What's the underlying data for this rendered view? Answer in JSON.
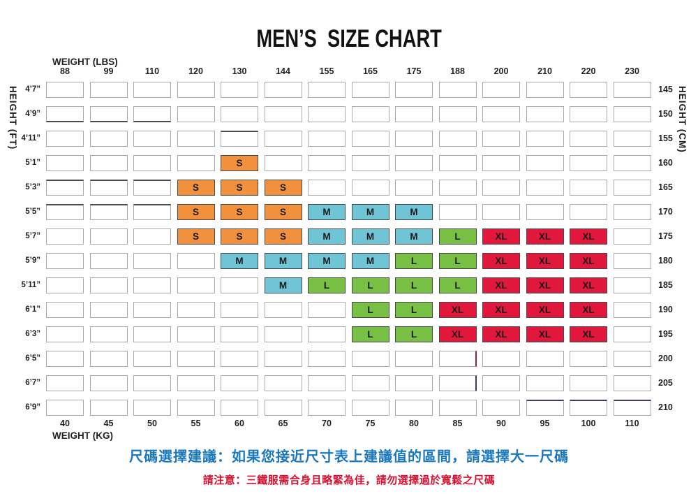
{
  "title": "MEN’S  SIZE CHART",
  "axes": {
    "top": "WEIGHT (LBS)",
    "bottom": "WEIGHT (KG)",
    "left": "HEIGHT (FT)",
    "right": "HEIGHT (CM)"
  },
  "size_colors": {
    "S": "#F1913D",
    "M": "#6FC5D6",
    "L": "#77C043",
    "XL": "#E2173C"
  },
  "notes": {
    "advice": "尺碼選擇建議：如果您接近尺寸表上建議值的區間，請選擇大一尺碼",
    "advice_color": "#1978BE",
    "warning": "請注意：三鐵服需合身且略緊為佳，請勿選擇過於寬鬆之尺碼",
    "warning_color": "#D5102E"
  },
  "chart_data": {
    "type": "heatmap",
    "title": "MEN’S SIZE CHART",
    "x_top_label": "WEIGHT (LBS)",
    "x_top_ticks": [
      88,
      99,
      110,
      120,
      130,
      144,
      155,
      165,
      175,
      188,
      200,
      210,
      220,
      230
    ],
    "x_bottom_label": "WEIGHT (KG)",
    "x_bottom_ticks": [
      40,
      45,
      50,
      55,
      60,
      65,
      70,
      75,
      80,
      85,
      90,
      95,
      100,
      110
    ],
    "y_left_label": "HEIGHT (FT)",
    "y_left_ticks": [
      "4’7”",
      "4’9”",
      "4’11”",
      "5’1”",
      "5’3”",
      "5’5”",
      "5’7”",
      "5’9”",
      "5’11”",
      "6’1”",
      "6’3”",
      "6’5”",
      "6’7”",
      "6’9”"
    ],
    "y_right_label": "HEIGHT (CM)",
    "y_right_ticks": [
      145,
      150,
      155,
      160,
      165,
      170,
      175,
      180,
      185,
      190,
      195,
      200,
      205,
      210
    ],
    "legend": [
      "S",
      "M",
      "L",
      "XL"
    ],
    "cells": [
      [
        "",
        "",
        "",
        "",
        "",
        "",
        "",
        "",
        "",
        "",
        "",
        "",
        "",
        ""
      ],
      [
        "",
        "",
        "",
        "",
        "",
        "",
        "",
        "",
        "",
        "",
        "",
        "",
        "",
        ""
      ],
      [
        "",
        "",
        "",
        "",
        "",
        "",
        "",
        "",
        "",
        "",
        "",
        "",
        "",
        ""
      ],
      [
        "",
        "",
        "",
        "",
        "S",
        "",
        "",
        "",
        "",
        "",
        "",
        "",
        "",
        ""
      ],
      [
        "",
        "",
        "",
        "S",
        "S",
        "S",
        "",
        "",
        "",
        "",
        "",
        "",
        "",
        ""
      ],
      [
        "",
        "",
        "",
        "S",
        "S",
        "S",
        "M",
        "M",
        "M",
        "",
        "",
        "",
        "",
        ""
      ],
      [
        "",
        "",
        "",
        "S",
        "S",
        "S",
        "M",
        "M",
        "M",
        "L",
        "XL",
        "XL",
        "XL",
        ""
      ],
      [
        "",
        "",
        "",
        "",
        "M",
        "M",
        "M",
        "M",
        "L",
        "L",
        "XL",
        "XL",
        "XL",
        ""
      ],
      [
        "",
        "",
        "",
        "",
        "",
        "M",
        "L",
        "L",
        "L",
        "L",
        "XL",
        "XL",
        "XL",
        ""
      ],
      [
        "",
        "",
        "",
        "",
        "",
        "",
        "",
        "L",
        "L",
        "XL",
        "XL",
        "XL",
        "XL",
        ""
      ],
      [
        "",
        "",
        "",
        "",
        "",
        "",
        "",
        "L",
        "L",
        "XL",
        "XL",
        "XL",
        "XL",
        ""
      ],
      [
        "",
        "",
        "",
        "",
        "",
        "",
        "",
        "",
        "",
        "",
        "",
        "",
        "",
        ""
      ],
      [
        "",
        "",
        "",
        "",
        "",
        "",
        "",
        "",
        "",
        "",
        "",
        "",
        "",
        ""
      ],
      [
        "",
        "",
        "",
        "",
        "",
        "",
        "",
        "",
        "",
        "",
        "",
        "",
        "",
        ""
      ]
    ]
  },
  "artifacts": [
    {
      "row": 1,
      "col": 0,
      "side": "bottom",
      "color": "#4b4b4d"
    },
    {
      "row": 1,
      "col": 1,
      "side": "bottom",
      "color": "#4b4b4d"
    },
    {
      "row": 1,
      "col": 2,
      "side": "bottom",
      "color": "#4b4b4d"
    },
    {
      "row": 2,
      "col": 4,
      "side": "top",
      "color": "#4b4b4d"
    },
    {
      "row": 4,
      "col": 0,
      "side": "top",
      "color": "#4b4b4d"
    },
    {
      "row": 4,
      "col": 1,
      "side": "top",
      "color": "#4b4b4d"
    },
    {
      "row": 4,
      "col": 2,
      "side": "top",
      "color": "#4b4b4d"
    },
    {
      "row": 5,
      "col": 0,
      "side": "top",
      "color": "#4b4b4d"
    },
    {
      "row": 5,
      "col": 1,
      "side": "top",
      "color": "#4b4b4d"
    },
    {
      "row": 5,
      "col": 2,
      "side": "top",
      "color": "#4b4b4d"
    },
    {
      "row": 11,
      "col": 9,
      "side": "right",
      "color": "#7e2d3f"
    },
    {
      "row": 12,
      "col": 9,
      "side": "right",
      "color": "#3f3a67"
    },
    {
      "row": 13,
      "col": 11,
      "side": "top",
      "color": "#3f3a67"
    },
    {
      "row": 13,
      "col": 12,
      "side": "top",
      "color": "#3f3a67"
    },
    {
      "row": 13,
      "col": 13,
      "side": "top",
      "color": "#3f3a67"
    }
  ]
}
